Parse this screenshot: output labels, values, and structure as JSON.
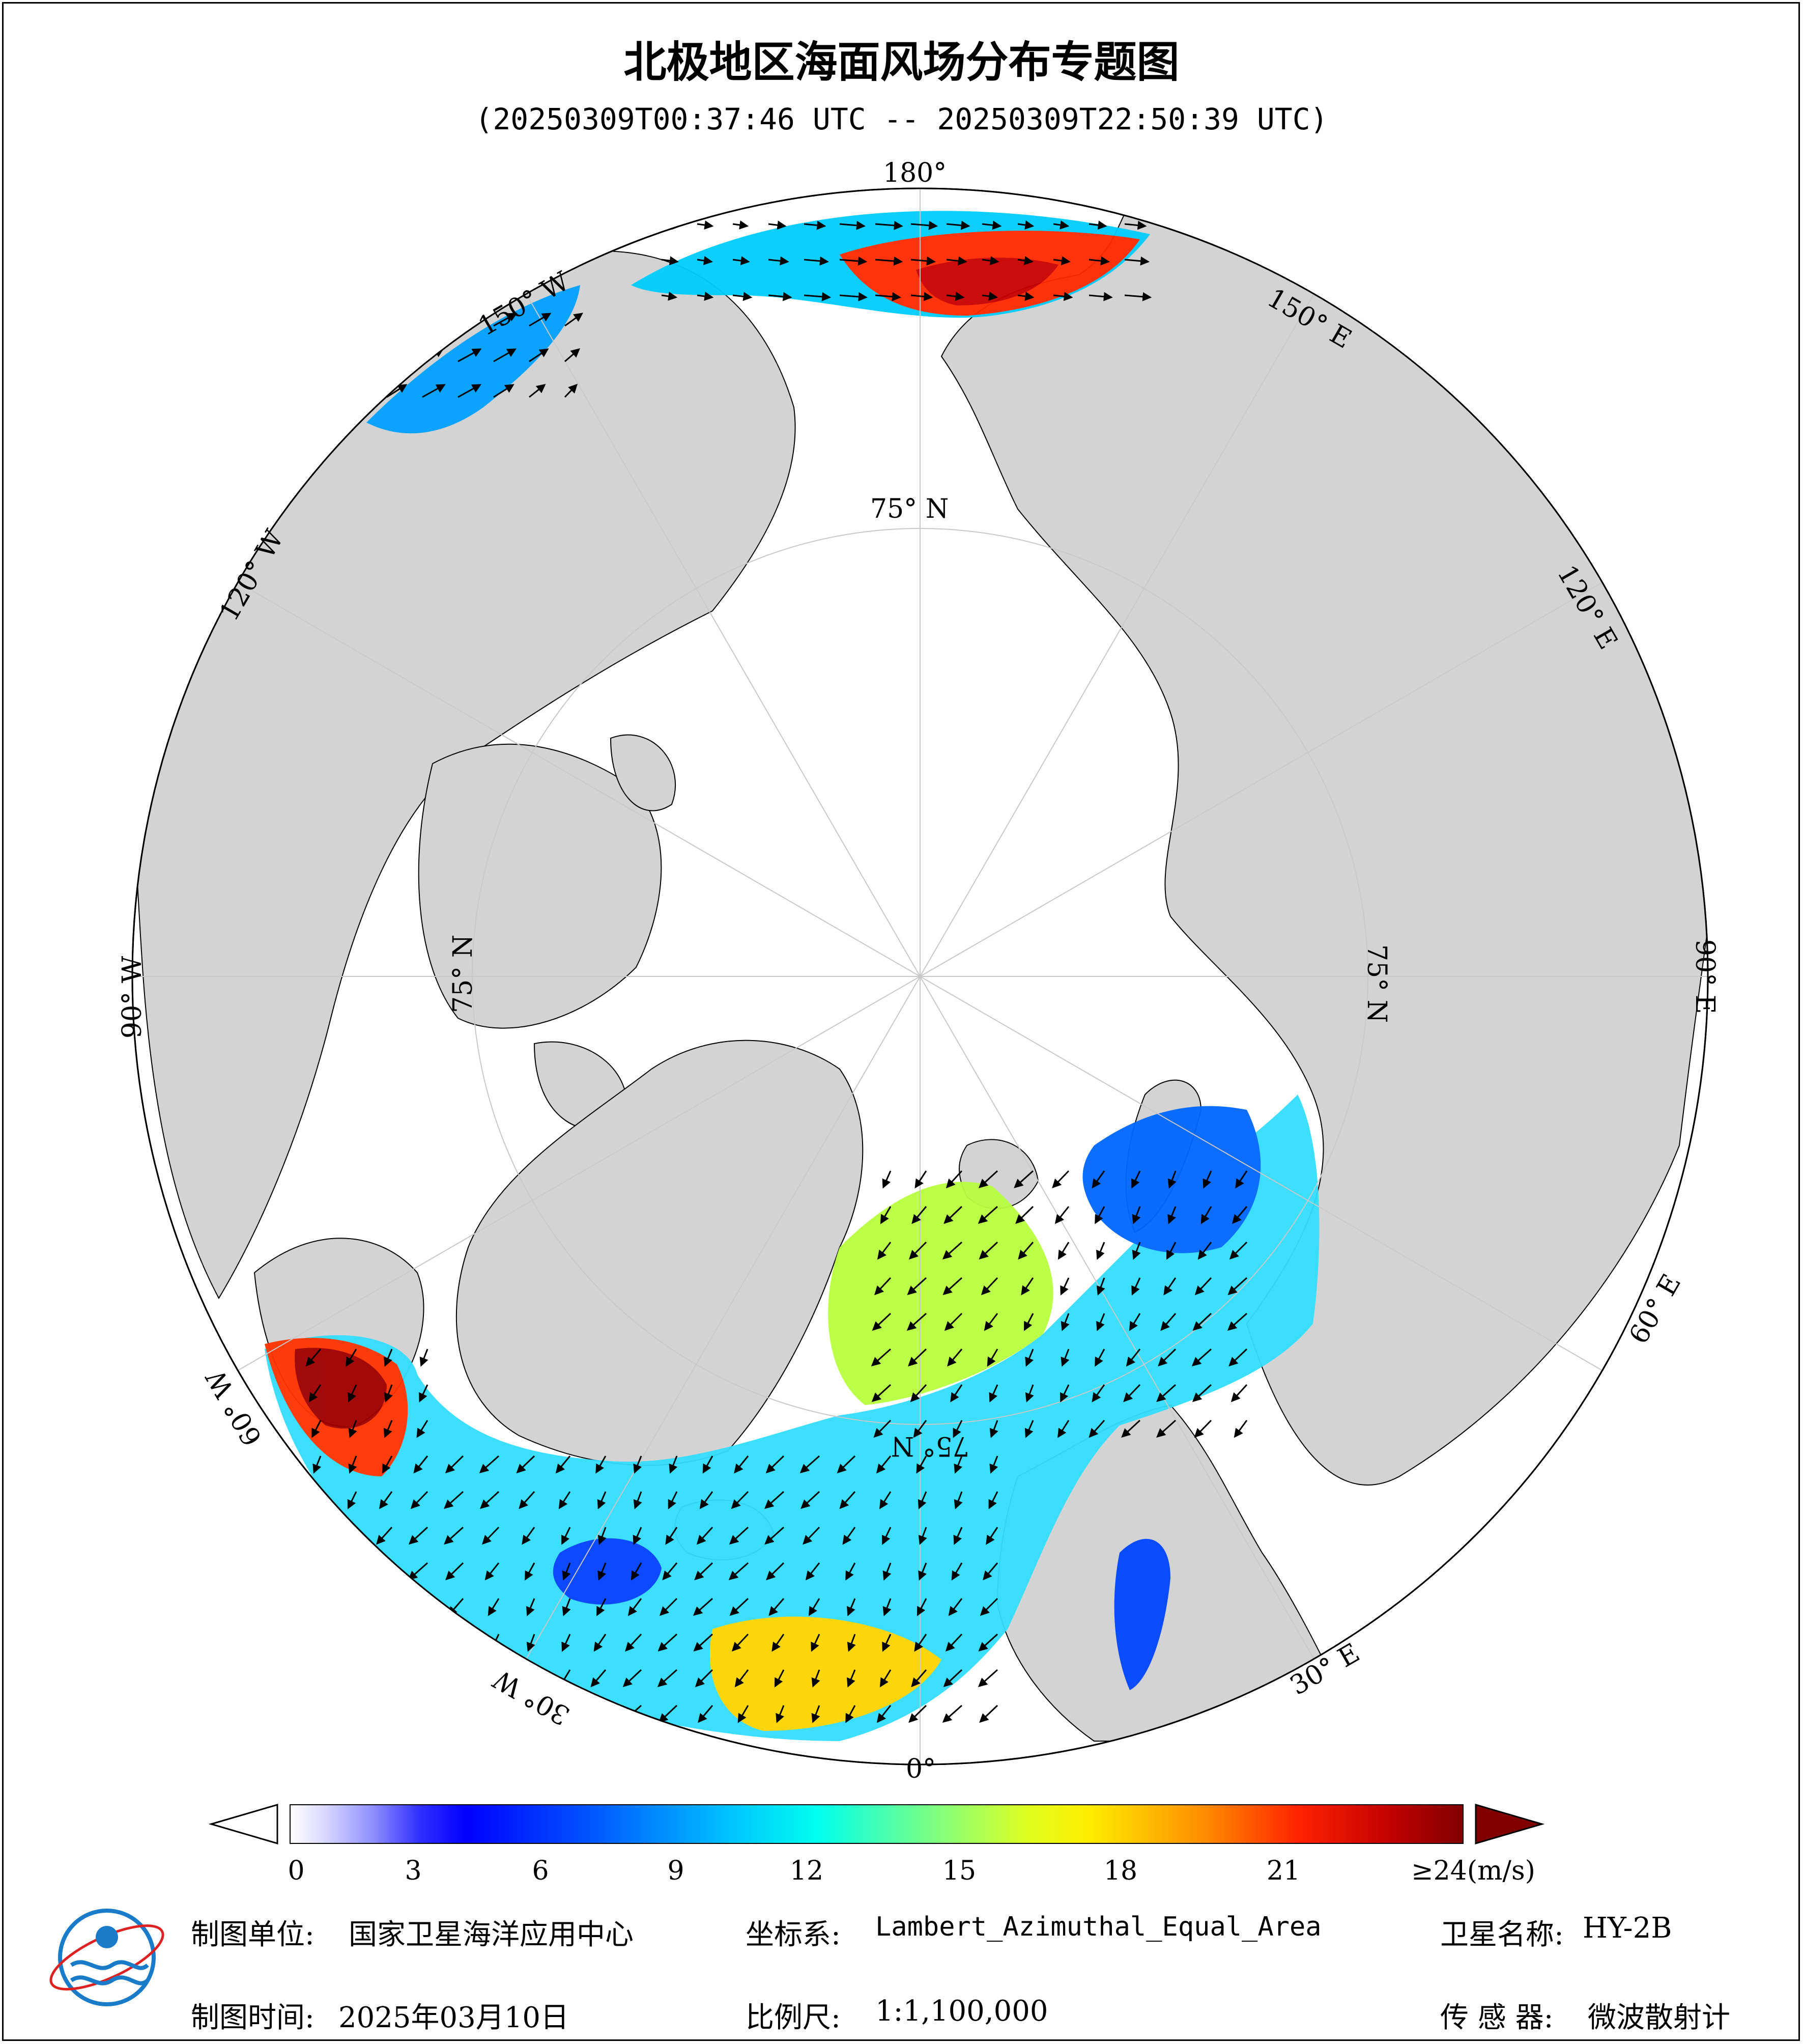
{
  "title": "北极地区海面风场分布专题图",
  "subtitle": "(20250309T00:37:46 UTC -- 20250309T22:50:39 UTC)",
  "graticule": {
    "lon_labels": [
      "180°",
      "150° E",
      "120° E",
      "90° E",
      "60° E",
      "30° E",
      "0°",
      "30° W",
      "60° W",
      "90° W",
      "120° W",
      "150° W"
    ],
    "lat_labels": [
      "75° N",
      "75° N",
      "75° N",
      "75° N"
    ]
  },
  "colorbar": {
    "ticks": [
      "0",
      "3",
      "6",
      "9",
      "12",
      "15",
      "18",
      "21",
      "≥24(m/s)"
    ],
    "min": 0,
    "max": 24,
    "colors": [
      "#ffffff",
      "#d8d8ff",
      "#a8a8ff",
      "#6060ff",
      "#0000ff",
      "#0060ff",
      "#00b0ff",
      "#00ffff",
      "#50ffa0",
      "#b0ff50",
      "#ffff00",
      "#ffb000",
      "#ff5000",
      "#ff0000",
      "#b00000",
      "#800000"
    ]
  },
  "footer": {
    "unit_label": "制图单位:",
    "unit_value": "国家卫星海洋应用中心",
    "time_label": "制图时间:",
    "time_value": "2025年03月10日",
    "crs_label": "坐标系:",
    "crs_value": "Lambert_Azimuthal_Equal_Area",
    "scale_label": "比例尺:",
    "scale_value": "1:1,100,000",
    "sat_label": "卫星名称:",
    "sat_value": "HY-2B",
    "sensor_label": "传 感 器:",
    "sensor_value": "微波散射计"
  },
  "colors": {
    "land": "#d3d3d3",
    "ocean": "#ffffff",
    "border": "#000000"
  }
}
